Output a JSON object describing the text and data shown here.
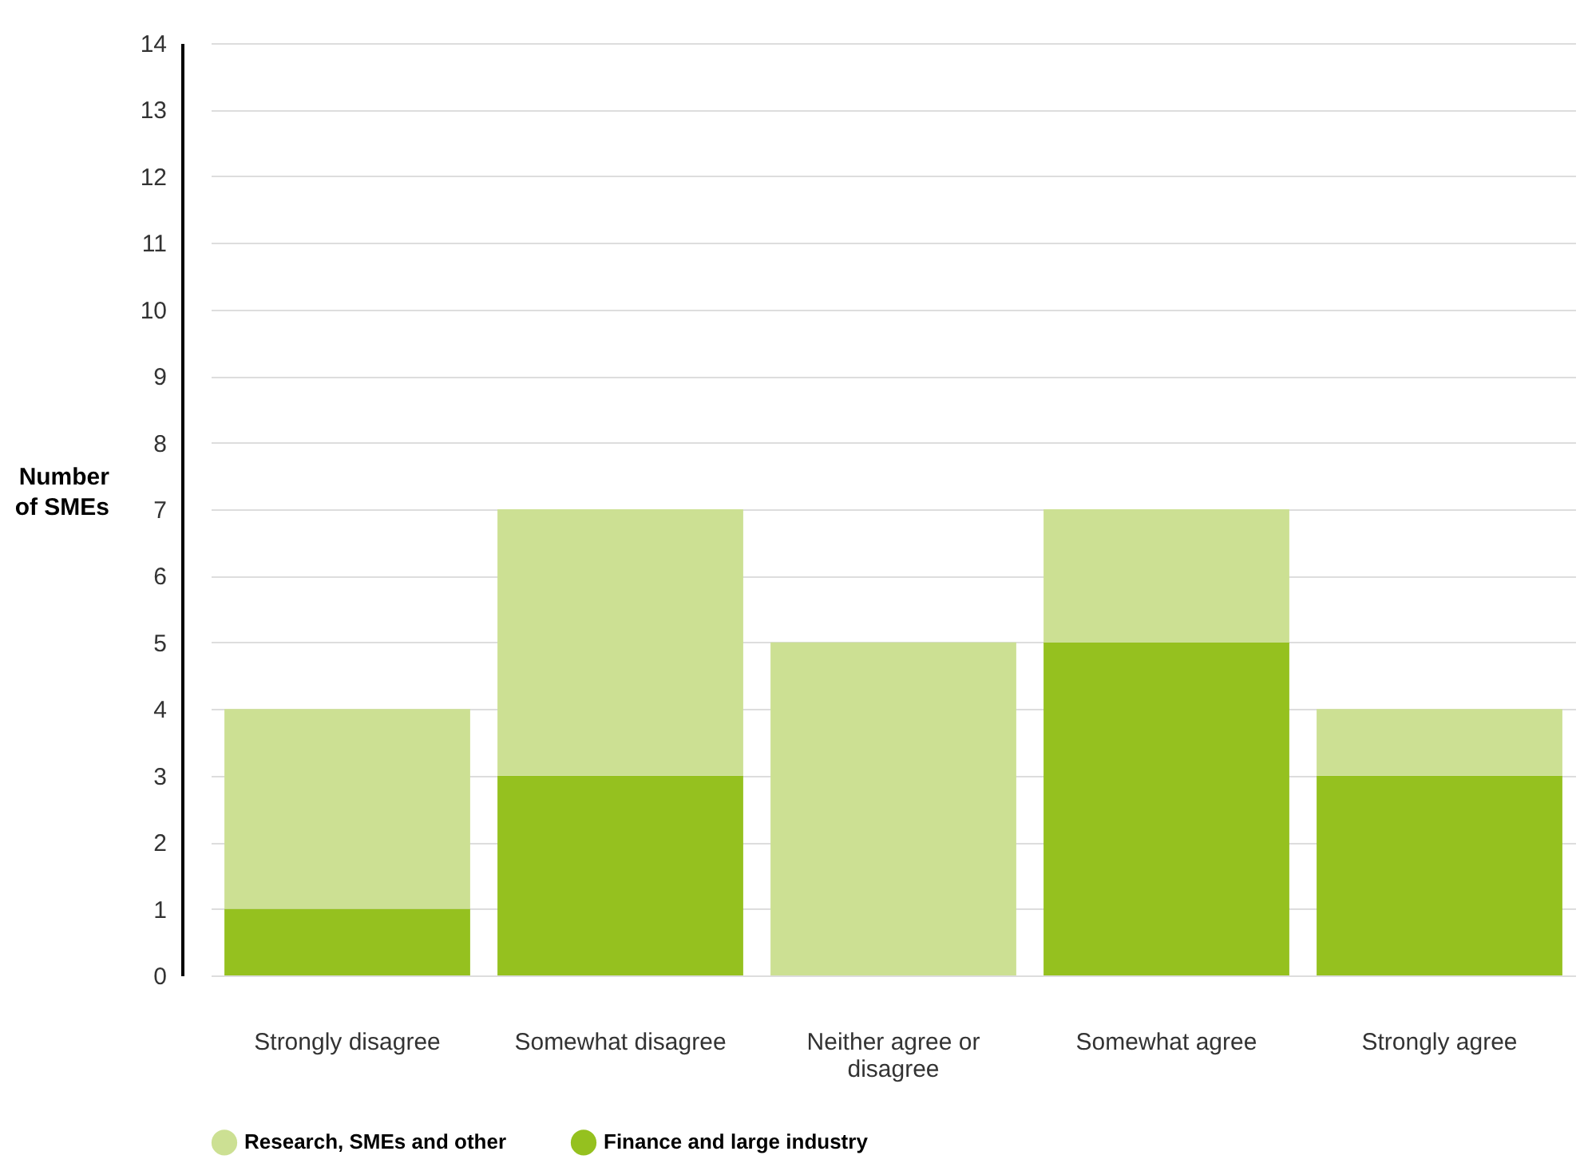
{
  "chart_data": {
    "type": "bar",
    "ylabel": "Number of SMEs",
    "categories": [
      "Strongly disagree",
      "Somewhat disagree",
      "Neither agree or disagree",
      "Somewhat agree",
      "Strongly agree"
    ],
    "series": [
      {
        "name": "Finance and large industry",
        "color": "#95c11f",
        "values": [
          1,
          3,
          0,
          5,
          3
        ]
      },
      {
        "name": "Research, SMEs and other",
        "color": "#cce093",
        "values": [
          3,
          4,
          5,
          2,
          1
        ]
      }
    ],
    "stacked": true,
    "ylim": [
      0,
      14
    ],
    "yticks": [
      0,
      1,
      2,
      3,
      4,
      5,
      6,
      7,
      8,
      9,
      10,
      11,
      12,
      13,
      14
    ],
    "grid": "y",
    "legend": "bottom left"
  }
}
